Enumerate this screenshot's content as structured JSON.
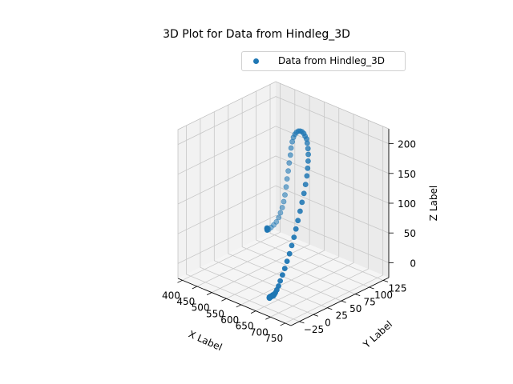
{
  "chart_data": {
    "type": "scatter",
    "projection": "3d",
    "title": "3D Plot for Data from Hindleg_3D",
    "xlabel": "X Label",
    "ylabel": "Y Label",
    "zlabel": "Z Label",
    "xticks": [
      400,
      450,
      500,
      550,
      600,
      650,
      700,
      750
    ],
    "yticks": [
      -25,
      0,
      25,
      50,
      75,
      100,
      125
    ],
    "zticks": [
      0,
      50,
      100,
      150,
      200
    ],
    "xlim": [
      385,
      770
    ],
    "ylim": [
      -40,
      135
    ],
    "zlim": [
      -25,
      225
    ],
    "legend_position": "upper right",
    "grid": true,
    "color": "#1f77b4",
    "series": [
      {
        "name": "Data from Hindleg_3D",
        "points": [
          [
            395,
            115,
            -10
          ],
          [
            395,
            114,
            -9
          ],
          [
            397,
            113,
            -9
          ],
          [
            399,
            112,
            -8
          ],
          [
            401,
            111,
            -8
          ],
          [
            403,
            110,
            -7
          ],
          [
            405,
            109,
            -7
          ],
          [
            407,
            108,
            -6
          ],
          [
            409,
            107,
            -6
          ],
          [
            411,
            106,
            -5
          ],
          [
            413,
            105,
            -5
          ],
          [
            415,
            104,
            -4
          ],
          [
            422,
            103,
            -1
          ],
          [
            430,
            103,
            4
          ],
          [
            439,
            103,
            10
          ],
          [
            448,
            103,
            17
          ],
          [
            456,
            103,
            26
          ],
          [
            464,
            102,
            36
          ],
          [
            470,
            102,
            46
          ],
          [
            477,
            101,
            58
          ],
          [
            483,
            100,
            71
          ],
          [
            489,
            99,
            86
          ],
          [
            494,
            98,
            101
          ],
          [
            500,
            97,
            116
          ],
          [
            505,
            96,
            131
          ],
          [
            511,
            95,
            146
          ],
          [
            517,
            93,
            160
          ],
          [
            525,
            91,
            173
          ],
          [
            533,
            89,
            183
          ],
          [
            542,
            87,
            191
          ],
          [
            551,
            85,
            197
          ],
          [
            561,
            83,
            202
          ],
          [
            571,
            81,
            205
          ],
          [
            581,
            79,
            207
          ],
          [
            591,
            77,
            207
          ],
          [
            601,
            74,
            206
          ],
          [
            610,
            72,
            204
          ],
          [
            618,
            69,
            200
          ],
          [
            626,
            66,
            194
          ],
          [
            633,
            63,
            187
          ],
          [
            640,
            59,
            179
          ],
          [
            646,
            55,
            170
          ],
          [
            651,
            51,
            160
          ],
          [
            656,
            46,
            149
          ],
          [
            660,
            41,
            137
          ],
          [
            663,
            36,
            125
          ],
          [
            666,
            31,
            113
          ],
          [
            668,
            26,
            100
          ],
          [
            669,
            22,
            88
          ],
          [
            670,
            18,
            76
          ],
          [
            670,
            14,
            64
          ],
          [
            670,
            10,
            52
          ],
          [
            669,
            6,
            41
          ],
          [
            667,
            3,
            30
          ],
          [
            665,
            0,
            20
          ],
          [
            663,
            -3,
            11
          ],
          [
            661,
            -5,
            3
          ],
          [
            659,
            -7,
            -3
          ],
          [
            658,
            -9,
            -7
          ],
          [
            657,
            -10,
            -9
          ],
          [
            657,
            -11,
            -10
          ],
          [
            656,
            -12,
            -10
          ],
          [
            657,
            -12,
            -11
          ],
          [
            656,
            -13,
            -10
          ],
          [
            657,
            -13,
            -9
          ],
          [
            656,
            -14,
            -10
          ],
          [
            657,
            -14,
            -11
          ],
          [
            656,
            -15,
            -10
          ],
          [
            657,
            -15,
            -10
          ],
          [
            656,
            -16,
            -11
          ],
          [
            657,
            -16,
            -10
          ],
          [
            656,
            -17,
            -10
          ],
          [
            657,
            -17,
            -11
          ],
          [
            656,
            -18,
            -10
          ],
          [
            657,
            -18,
            -10
          ],
          [
            658,
            -19,
            -11
          ],
          [
            657,
            -19,
            -10
          ],
          [
            658,
            -20,
            -10
          ],
          [
            659,
            -20,
            -11
          ],
          [
            660,
            -21,
            -10
          ]
        ]
      }
    ]
  }
}
